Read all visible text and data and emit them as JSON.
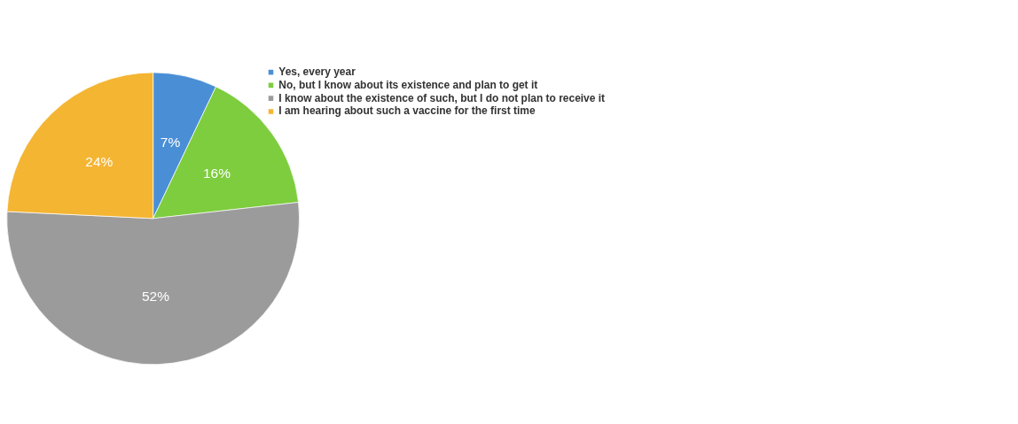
{
  "chart_data": {
    "type": "pie",
    "categories": [
      "Yes, every year",
      "No, but I know about its existence and plan to get it",
      "I know about the existence of such, but I do not plan to receive it",
      "I am hearing about such a vaccine for the first time"
    ],
    "values": [
      7,
      16,
      52,
      24
    ],
    "value_labels": [
      "7%",
      "16%",
      "52%",
      "24%"
    ],
    "colors": [
      "#4a8fd6",
      "#7dcd3e",
      "#9b9b9b",
      "#f4b533"
    ],
    "legend": "top right"
  }
}
